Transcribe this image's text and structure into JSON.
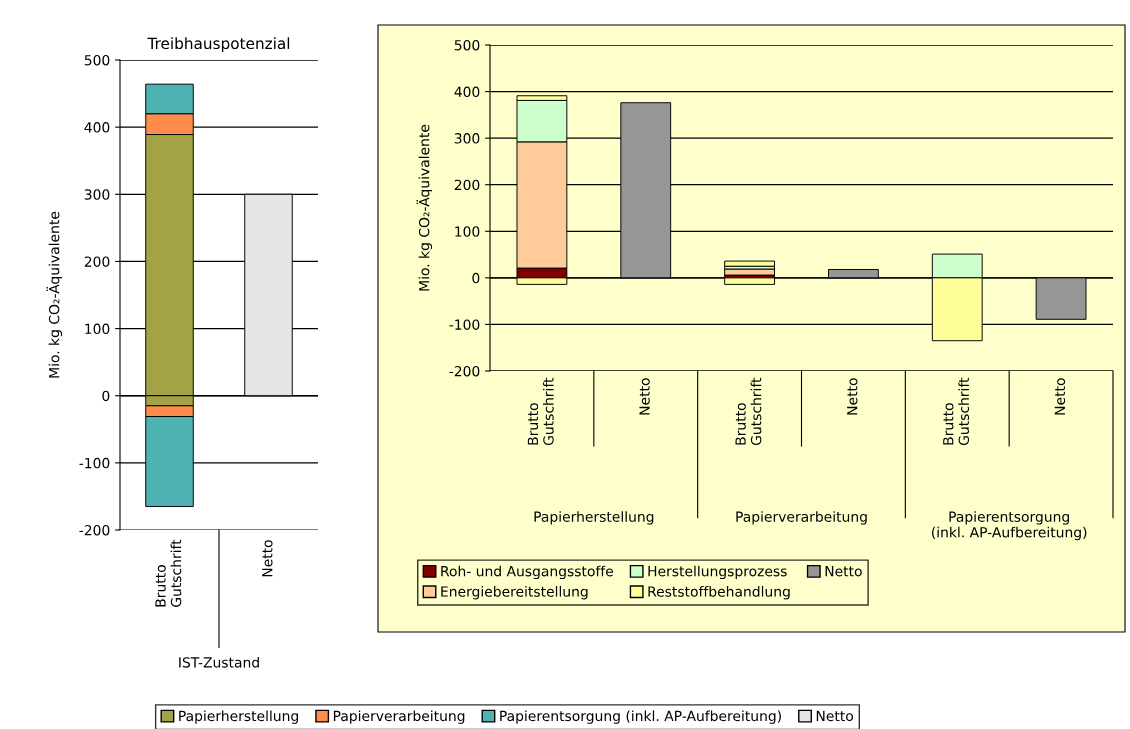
{
  "chart_data": [
    {
      "type": "bar",
      "title": "Treibhauspotenzial",
      "ylabel": "Mio. kg CO₂-Äquivalente",
      "stacked": true,
      "categories": [
        "Brutto\nGutschrift",
        "Netto"
      ],
      "series": [
        {
          "name": "Papierherstellung",
          "color": "#a3a345",
          "values": [
            389,
            null
          ]
        },
        {
          "name": "Papierverarbeitung",
          "color": "#ff8c4a",
          "values": [
            31,
            null
          ]
        },
        {
          "name": "Papierentsorgung (inkl. AP-Aufbereitung)",
          "color": "#4fb3b3",
          "values": [
            44,
            null
          ]
        },
        {
          "color": "#a3a345",
          "values": [
            -15,
            null
          ]
        },
        {
          "color": "#ff8c4a",
          "values": [
            -16,
            null
          ]
        },
        {
          "color": "#4fb3b3",
          "values": [
            -134,
            null
          ]
        },
        {
          "name": "Netto",
          "color": "#e6e6e6",
          "values": [
            null,
            300
          ]
        }
      ],
      "ylim": [
        -200,
        500
      ],
      "yticks": [
        -200,
        -100,
        0,
        100,
        200,
        300,
        400,
        500
      ],
      "grid": "y",
      "legend": "bottom",
      "annotations": [
        "IST-Zustand"
      ]
    },
    {
      "type": "bar",
      "ylabel": "Mio. kg CO₂-Äquivalente",
      "stacked": true,
      "categories": [
        "Brutto\nGutschrift",
        "Netto",
        "Brutto\nGutschrift",
        "Netto",
        "Brutto\nGutschrift",
        "Netto"
      ],
      "series": [
        {
          "name": "Roh- und Ausgangsstoffe",
          "color": "#800000",
          "values": [
            21,
            null,
            6,
            null,
            null,
            null
          ]
        },
        {
          "name": "Energiebereitstellung",
          "color": "#ffcc99",
          "values": [
            271,
            null,
            13,
            null,
            null,
            null
          ]
        },
        {
          "name": "Herstellungsprozess",
          "color": "#ccffcc",
          "values": [
            89,
            null,
            6,
            null,
            51,
            null
          ]
        },
        {
          "name": "Reststoffbehandlung",
          "color": "#ffff99",
          "values": [
            10,
            null,
            11,
            null,
            null,
            null
          ]
        },
        {
          "color": "#ffff99",
          "values": [
            -14,
            null,
            -14,
            null,
            -135,
            null
          ]
        },
        {
          "name": "Netto",
          "color": "#969696",
          "values": [
            null,
            376,
            null,
            18,
            null,
            -89
          ]
        }
      ],
      "ylim": [
        -200,
        500
      ],
      "yticks": [
        -200,
        -100,
        0,
        100,
        200,
        300,
        400,
        500
      ],
      "grid": "y",
      "legend": "bottom",
      "annotations": [
        "Papierherstellung",
        "Papierverarbeitung",
        "Papierentsorgung\n(inkl. AP-Aufbereitung)"
      ]
    }
  ]
}
